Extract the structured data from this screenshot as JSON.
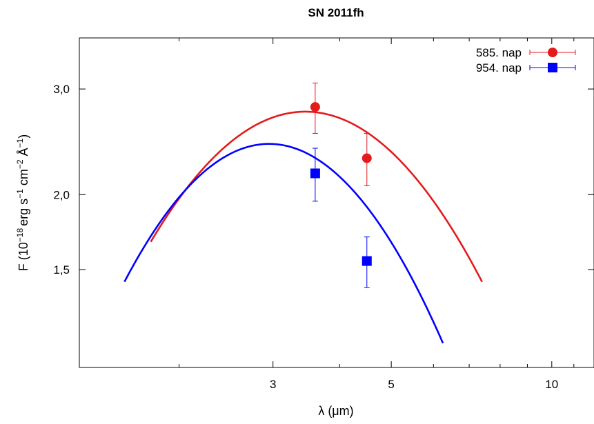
{
  "chart_data": {
    "type": "scatter",
    "title": "SN 2011fh",
    "xlabel": "λ (μm)",
    "ylabel": {
      "main": "F (10",
      "exp1": "−18",
      "erg": "erg s",
      "exp2": "−1",
      "cm": " cm",
      "exp3": "−2",
      "ang": " Å",
      "exp4": "−1",
      "close": ")"
    },
    "x_scale": "log",
    "y_scale": "log",
    "xlim": [
      1.3,
      12
    ],
    "ylim": [
      1.03,
      3.65
    ],
    "xticks": [
      {
        "value": 3,
        "label": "3"
      },
      {
        "value": 5,
        "label": "5"
      },
      {
        "value": 10,
        "label": "10"
      }
    ],
    "yticks": [
      {
        "value": 1.5,
        "label": "1,5"
      },
      {
        "value": 2.0,
        "label": "2,0"
      },
      {
        "value": 3.0,
        "label": "3,0"
      }
    ],
    "grid": false,
    "legend_position": "top-right",
    "series": [
      {
        "name": "585. nap",
        "color": "#e41a1c",
        "marker": "circle",
        "points": [
          {
            "x": 3.6,
            "y": 2.8,
            "yerr_low": 0.27,
            "yerr_high": 0.27
          },
          {
            "x": 4.5,
            "y": 2.3,
            "yerr_low": 0.23,
            "yerr_high": 0.23
          }
        ],
        "fit_curve": {
          "peak_x": 3.45,
          "peak_y": 2.75,
          "width_dex": 0.22,
          "x_range": [
            1.77,
            7.4
          ]
        }
      },
      {
        "name": "954. nap",
        "color": "#0000ff",
        "marker": "square",
        "points": [
          {
            "x": 3.6,
            "y": 2.17,
            "yerr_low": 0.22,
            "yerr_high": 0.22
          },
          {
            "x": 4.5,
            "y": 1.55,
            "yerr_low": 0.15,
            "yerr_high": 0.15
          }
        ],
        "fit_curve": {
          "peak_x": 2.95,
          "peak_y": 2.43,
          "width_dex": 0.2,
          "x_range": [
            1.58,
            6.25
          ]
        }
      }
    ]
  }
}
